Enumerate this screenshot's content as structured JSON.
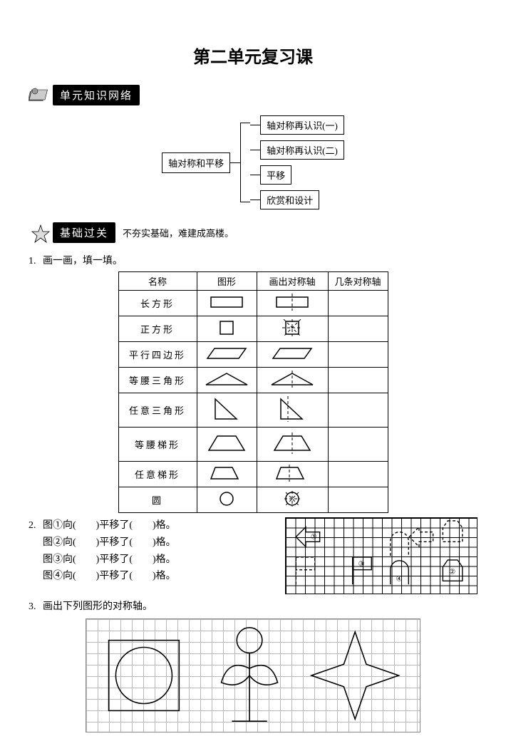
{
  "title": "第二单元复习课",
  "section1": {
    "badge": "单元知识网络"
  },
  "concept_map": {
    "root": "轴对称和平移",
    "leaves": [
      "轴对称再认识(一)",
      "轴对称再认识(二)",
      "平移",
      "欣赏和设计"
    ]
  },
  "section2": {
    "badge": "基础过关",
    "tail": "不夯实基础，难建成高楼。"
  },
  "q1": {
    "num": "1.",
    "stem": "画一画，填一填。",
    "headers": [
      "名称",
      "图形",
      "画出对称轴",
      "几条对称轴"
    ],
    "rows": [
      {
        "name": "长方形",
        "tall": false
      },
      {
        "name": "正方形",
        "tall": false
      },
      {
        "name": "平行四边形",
        "tall": false
      },
      {
        "name": "等腰三角形",
        "tall": false
      },
      {
        "name": "任意三角形",
        "tall": true
      },
      {
        "name": "等腰梯形",
        "tall": true
      },
      {
        "name": "任意梯形",
        "tall": false
      },
      {
        "name": "圆",
        "tall": false
      }
    ]
  },
  "q2": {
    "num": "2.",
    "lines": [
      "图①向(　　)平移了(　　)格。",
      "图②向(　　)平移了(　　)格。",
      "图③向(　　)平移了(　　)格。",
      "图④向(　　)平移了(　　)格。"
    ]
  },
  "q3": {
    "num": "3.",
    "stem": "画出下列图形的对称轴。"
  },
  "style": {
    "page_bg": "#ffffff",
    "text_color": "#000000",
    "grid_minor": "#bbbbbb",
    "stroke": "#000000",
    "dash": "4,3"
  }
}
